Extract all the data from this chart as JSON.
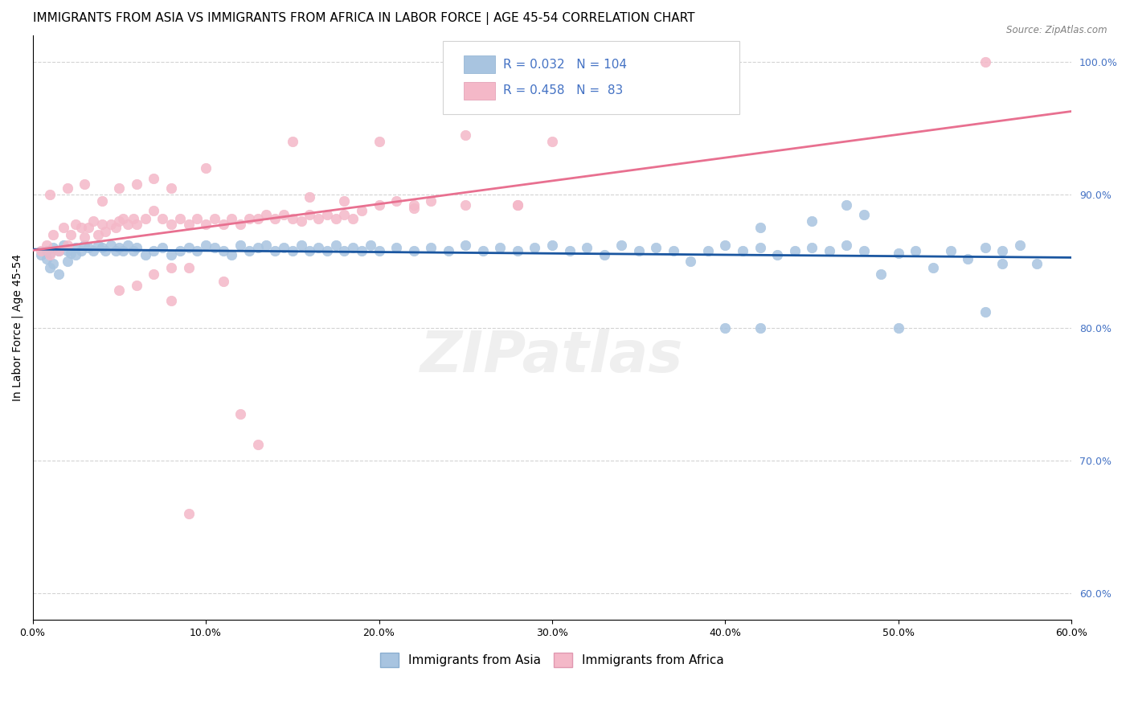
{
  "title": "IMMIGRANTS FROM ASIA VS IMMIGRANTS FROM AFRICA IN LABOR FORCE | AGE 45-54 CORRELATION CHART",
  "source": "Source: ZipAtlas.com",
  "ylabel": "In Labor Force | Age 45-54",
  "xlim": [
    0.0,
    0.6
  ],
  "ylim": [
    0.58,
    1.02
  ],
  "xticks": [
    0.0,
    0.1,
    0.2,
    0.3,
    0.4,
    0.5,
    0.6
  ],
  "xticklabels": [
    "0.0%",
    "10.0%",
    "20.0%",
    "30.0%",
    "40.0%",
    "50.0%",
    "60.0%"
  ],
  "yticks_right": [
    0.6,
    0.7,
    0.8,
    0.9,
    1.0
  ],
  "yticklabels_right": [
    "60.0%",
    "70.0%",
    "80.0%",
    "90.0%",
    "100.0%"
  ],
  "asia_color": "#a8c4e0",
  "africa_color": "#f4b8c8",
  "asia_line_color": "#1a56a0",
  "africa_line_color": "#e87090",
  "R_asia": 0.032,
  "N_asia": 104,
  "R_africa": 0.458,
  "N_africa": 83,
  "label_color": "#4472c4",
  "watermark": "ZIPatlas",
  "title_fontsize": 11,
  "axis_label_fontsize": 10,
  "tick_fontsize": 9,
  "legend_fontsize": 11,
  "asia_x": [
    0.005,
    0.008,
    0.01,
    0.012,
    0.015,
    0.018,
    0.02,
    0.022,
    0.025,
    0.028,
    0.03,
    0.032,
    0.035,
    0.038,
    0.04,
    0.042,
    0.045,
    0.048,
    0.05,
    0.052,
    0.055,
    0.058,
    0.06,
    0.065,
    0.07,
    0.075,
    0.08,
    0.085,
    0.09,
    0.095,
    0.1,
    0.105,
    0.11,
    0.115,
    0.12,
    0.125,
    0.13,
    0.135,
    0.14,
    0.145,
    0.15,
    0.155,
    0.16,
    0.165,
    0.17,
    0.175,
    0.18,
    0.185,
    0.19,
    0.195,
    0.2,
    0.21,
    0.22,
    0.23,
    0.24,
    0.25,
    0.26,
    0.27,
    0.28,
    0.29,
    0.3,
    0.31,
    0.32,
    0.33,
    0.34,
    0.35,
    0.36,
    0.37,
    0.38,
    0.39,
    0.4,
    0.41,
    0.42,
    0.43,
    0.44,
    0.45,
    0.46,
    0.47,
    0.48,
    0.49,
    0.5,
    0.51,
    0.52,
    0.53,
    0.54,
    0.55,
    0.56,
    0.57,
    0.42,
    0.45,
    0.47,
    0.48,
    0.55,
    0.58,
    0.4,
    0.42,
    0.5,
    0.56,
    0.015,
    0.01,
    0.008,
    0.012,
    0.02,
    0.025
  ],
  "asia_y": [
    0.855,
    0.858,
    0.856,
    0.86,
    0.858,
    0.862,
    0.858,
    0.856,
    0.86,
    0.858,
    0.862,
    0.86,
    0.858,
    0.862,
    0.86,
    0.858,
    0.862,
    0.858,
    0.86,
    0.858,
    0.862,
    0.858,
    0.86,
    0.855,
    0.858,
    0.86,
    0.855,
    0.858,
    0.86,
    0.858,
    0.862,
    0.86,
    0.858,
    0.855,
    0.862,
    0.858,
    0.86,
    0.862,
    0.858,
    0.86,
    0.858,
    0.862,
    0.858,
    0.86,
    0.858,
    0.862,
    0.858,
    0.86,
    0.858,
    0.862,
    0.858,
    0.86,
    0.858,
    0.86,
    0.858,
    0.862,
    0.858,
    0.86,
    0.858,
    0.86,
    0.862,
    0.858,
    0.86,
    0.855,
    0.862,
    0.858,
    0.86,
    0.858,
    0.85,
    0.858,
    0.862,
    0.858,
    0.86,
    0.855,
    0.858,
    0.86,
    0.858,
    0.862,
    0.858,
    0.84,
    0.856,
    0.858,
    0.845,
    0.858,
    0.852,
    0.86,
    0.858,
    0.862,
    0.875,
    0.88,
    0.892,
    0.885,
    0.812,
    0.848,
    0.8,
    0.8,
    0.8,
    0.848,
    0.84,
    0.845,
    0.852,
    0.848,
    0.85,
    0.855
  ],
  "africa_x": [
    0.005,
    0.008,
    0.01,
    0.012,
    0.015,
    0.018,
    0.02,
    0.022,
    0.025,
    0.028,
    0.03,
    0.032,
    0.035,
    0.038,
    0.04,
    0.042,
    0.045,
    0.048,
    0.05,
    0.052,
    0.055,
    0.058,
    0.06,
    0.065,
    0.07,
    0.075,
    0.08,
    0.085,
    0.09,
    0.095,
    0.1,
    0.105,
    0.11,
    0.115,
    0.12,
    0.125,
    0.13,
    0.135,
    0.14,
    0.145,
    0.15,
    0.155,
    0.16,
    0.165,
    0.17,
    0.175,
    0.18,
    0.185,
    0.19,
    0.2,
    0.21,
    0.22,
    0.23,
    0.25,
    0.28,
    0.15,
    0.2,
    0.25,
    0.3,
    0.1,
    0.08,
    0.07,
    0.06,
    0.05,
    0.04,
    0.03,
    0.02,
    0.01,
    0.16,
    0.18,
    0.22,
    0.28,
    0.55,
    0.13,
    0.12,
    0.09,
    0.11,
    0.08,
    0.05,
    0.06,
    0.07,
    0.08,
    0.09
  ],
  "africa_y": [
    0.858,
    0.862,
    0.855,
    0.87,
    0.858,
    0.875,
    0.862,
    0.87,
    0.878,
    0.875,
    0.868,
    0.875,
    0.88,
    0.87,
    0.878,
    0.872,
    0.878,
    0.875,
    0.88,
    0.882,
    0.878,
    0.882,
    0.878,
    0.882,
    0.888,
    0.882,
    0.878,
    0.882,
    0.878,
    0.882,
    0.878,
    0.882,
    0.878,
    0.882,
    0.878,
    0.882,
    0.882,
    0.885,
    0.882,
    0.885,
    0.882,
    0.88,
    0.885,
    0.882,
    0.885,
    0.882,
    0.885,
    0.882,
    0.888,
    0.892,
    0.895,
    0.89,
    0.895,
    0.892,
    0.892,
    0.94,
    0.94,
    0.945,
    0.94,
    0.92,
    0.905,
    0.912,
    0.908,
    0.905,
    0.895,
    0.908,
    0.905,
    0.9,
    0.898,
    0.895,
    0.892,
    0.892,
    1.0,
    0.712,
    0.735,
    0.66,
    0.835,
    0.82,
    0.828,
    0.832,
    0.84,
    0.845,
    0.845
  ]
}
